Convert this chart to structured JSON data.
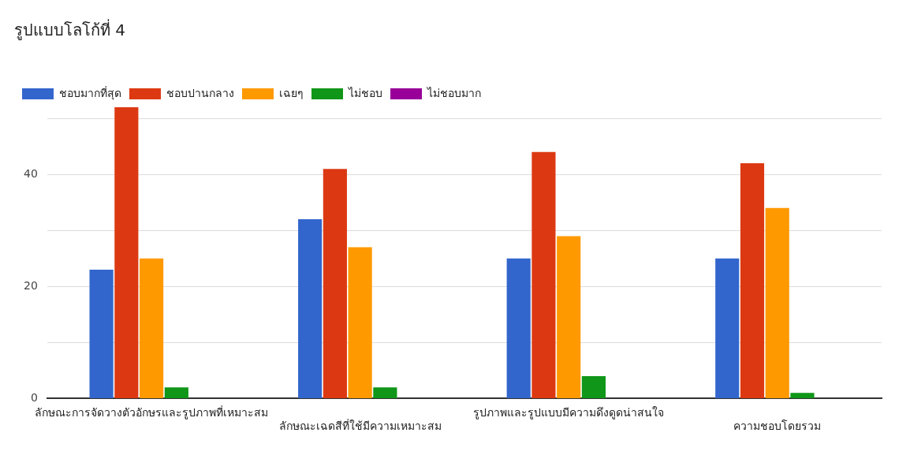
{
  "chart_data": {
    "type": "bar",
    "title": "รูปแบบโลโก้ที่ 4",
    "categories": [
      "ลักษณะการจัดวางตัวอักษรและรูปภาพที่เหมาะสม",
      "ลักษณะเฉดสีที่ใช้มีความเหมาะสม",
      "รูปภาพและรูปแบบมีความดึงดูดน่าสนใจ",
      "ความชอบโดยรวม"
    ],
    "series": [
      {
        "name": "ชอบมากที่สุด",
        "color": "#3366cc",
        "values": [
          23,
          32,
          25,
          25
        ]
      },
      {
        "name": "ชอบปานกลาง",
        "color": "#dc3912",
        "values": [
          52,
          41,
          44,
          42
        ]
      },
      {
        "name": "เฉยๆ",
        "color": "#ff9900",
        "values": [
          25,
          27,
          29,
          34
        ]
      },
      {
        "name": "ไม่ชอบ",
        "color": "#109618",
        "values": [
          2,
          2,
          4,
          1
        ]
      },
      {
        "name": "ไม่ชอบมาก",
        "color": "#990099",
        "values": [
          0,
          0,
          0,
          0
        ]
      }
    ],
    "ylim": [
      0,
      52
    ],
    "yticks": [
      0,
      {
        "value": 10,
        "label": null
      },
      20,
      {
        "value": 30,
        "label": null
      },
      40,
      {
        "value": 50,
        "label": null
      }
    ],
    "grid": "y",
    "legend": "top left"
  }
}
